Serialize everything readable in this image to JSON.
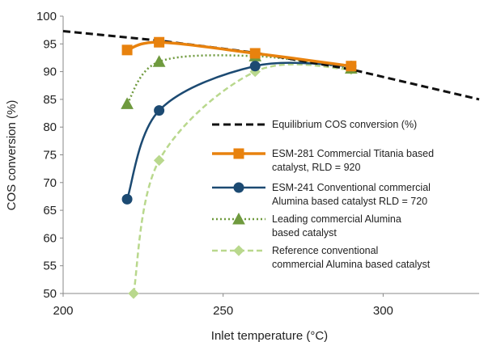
{
  "chart_data": {
    "type": "line",
    "title": "",
    "xlabel": "Inlet temperature (°C)",
    "ylabel": "COS conversion (%)",
    "xlim": [
      200,
      330
    ],
    "ylim": [
      50,
      100
    ],
    "x_ticks": [
      200,
      250,
      300
    ],
    "y_ticks": [
      50,
      55,
      60,
      65,
      70,
      75,
      80,
      85,
      90,
      95,
      100
    ],
    "grid": false,
    "legend_position": "right",
    "series": [
      {
        "name": "Equilibrium COS conversion (%)",
        "legend_lines": [
          "Equilibrium COS conversion (%)"
        ],
        "style": "dashed-thick",
        "color": "#111111",
        "marker": "none",
        "x": [
          200,
          230,
          260,
          290,
          330
        ],
        "y": [
          97.3,
          95.6,
          93.4,
          90.4,
          85.0
        ]
      },
      {
        "name": "ESM-281 Commercial Titania based catalyst, RLD = 920",
        "legend_lines": [
          "ESM-281 Commercial Titania based",
          "catalyst, RLD = 920"
        ],
        "style": "solid-thick",
        "color": "#e8820e",
        "marker": "square",
        "x": [
          220,
          230,
          260,
          290
        ],
        "y": [
          93.9,
          95.3,
          93.3,
          91.0
        ]
      },
      {
        "name": "ESM-241 Conventional commercial Alumina based catalyst RLD = 720",
        "legend_lines": [
          "ESM-241 Conventional commercial",
          "Alumina based catalyst RLD = 720"
        ],
        "style": "solid",
        "color": "#1c4a72",
        "marker": "circle",
        "x": [
          220,
          230,
          260,
          290
        ],
        "y": [
          67.0,
          83.0,
          91.0,
          91.0
        ]
      },
      {
        "name": "Leading commercial Alumina based catalyst",
        "legend_lines": [
          "Leading commercial Alumina",
          "based catalyst"
        ],
        "style": "dotted",
        "color": "#6f9a3e",
        "marker": "triangle",
        "x": [
          220,
          230,
          260,
          290
        ],
        "y": [
          84.2,
          91.8,
          92.8,
          90.6
        ]
      },
      {
        "name": "Reference conventional commercial Alumina based catalyst",
        "legend_lines": [
          "Reference conventional",
          "commercial Alumina based catalyst"
        ],
        "style": "dashed",
        "color": "#b9d88d",
        "marker": "diamond",
        "x": [
          222,
          230,
          260,
          290
        ],
        "y": [
          50.0,
          74.0,
          90.0,
          90.4
        ]
      }
    ]
  }
}
